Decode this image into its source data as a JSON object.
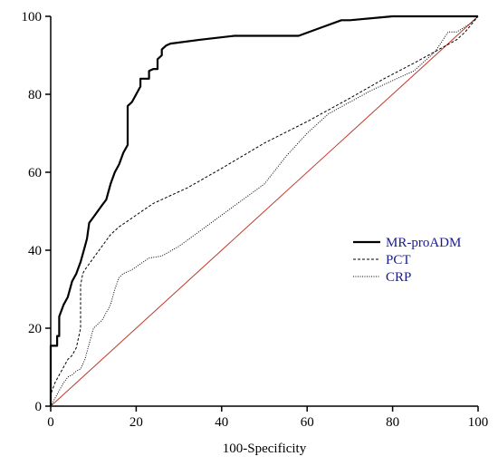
{
  "chart_data": {
    "type": "line",
    "title": "",
    "xlabel": "100-Specificity",
    "ylabel": "",
    "xlim": [
      0,
      100
    ],
    "ylim": [
      0,
      100
    ],
    "x_ticks": [
      0,
      20,
      40,
      60,
      80,
      100
    ],
    "y_ticks": [
      0,
      20,
      40,
      60,
      80,
      100
    ],
    "x_tick_labels": [
      "0",
      "20",
      "40",
      "60",
      "80",
      "100"
    ],
    "y_tick_labels": [
      "0",
      "20",
      "40",
      "60",
      "80",
      "100"
    ],
    "grid": false,
    "legend_position": "right",
    "series": [
      {
        "name": "MR-proADM",
        "color": "#000000",
        "style": "solid-thick",
        "points": [
          [
            0,
            0
          ],
          [
            0,
            15.5
          ],
          [
            1.5,
            15.5
          ],
          [
            1.5,
            18
          ],
          [
            2,
            18
          ],
          [
            2,
            23
          ],
          [
            3,
            26
          ],
          [
            4,
            28
          ],
          [
            5,
            32
          ],
          [
            6,
            34
          ],
          [
            7,
            37
          ],
          [
            8,
            41
          ],
          [
            8.5,
            43
          ],
          [
            9,
            47
          ],
          [
            10,
            48.5
          ],
          [
            11,
            50
          ],
          [
            12,
            51.5
          ],
          [
            13,
            53
          ],
          [
            14,
            57
          ],
          [
            15,
            60
          ],
          [
            16,
            62
          ],
          [
            17,
            65
          ],
          [
            18,
            67
          ],
          [
            18,
            77
          ],
          [
            19,
            78
          ],
          [
            20,
            80
          ],
          [
            21,
            82
          ],
          [
            21,
            84
          ],
          [
            23,
            84
          ],
          [
            23,
            86
          ],
          [
            24,
            86.5
          ],
          [
            25,
            86.5
          ],
          [
            25,
            89
          ],
          [
            26,
            90
          ],
          [
            26,
            91.5
          ],
          [
            27,
            92.5
          ],
          [
            28,
            93
          ],
          [
            35,
            94
          ],
          [
            43,
            95
          ],
          [
            58,
            95
          ],
          [
            63,
            97
          ],
          [
            68,
            99
          ],
          [
            70,
            99
          ],
          [
            80,
            100
          ],
          [
            100,
            100
          ]
        ]
      },
      {
        "name": "PCT",
        "color": "#000000",
        "style": "dashed",
        "points": [
          [
            0,
            0
          ],
          [
            0,
            3
          ],
          [
            1,
            6
          ],
          [
            2,
            8
          ],
          [
            3,
            10
          ],
          [
            4,
            12
          ],
          [
            5,
            13
          ],
          [
            6,
            15
          ],
          [
            7,
            20
          ],
          [
            7,
            31
          ],
          [
            7.5,
            34
          ],
          [
            8,
            35
          ],
          [
            10,
            38
          ],
          [
            12,
            41
          ],
          [
            14,
            44
          ],
          [
            16,
            46
          ],
          [
            18,
            47.5
          ],
          [
            20,
            49
          ],
          [
            22,
            50.5
          ],
          [
            24,
            52
          ],
          [
            27,
            53.5
          ],
          [
            32,
            56
          ],
          [
            40,
            61
          ],
          [
            50,
            67.5
          ],
          [
            60,
            73
          ],
          [
            70,
            79
          ],
          [
            78,
            84
          ],
          [
            85,
            88
          ],
          [
            90,
            91
          ],
          [
            95,
            94
          ],
          [
            97,
            96
          ],
          [
            100,
            100
          ]
        ]
      },
      {
        "name": "CRP",
        "color": "#000000",
        "style": "dotted",
        "points": [
          [
            0,
            0
          ],
          [
            1,
            2
          ],
          [
            2,
            4
          ],
          [
            3,
            6
          ],
          [
            4,
            7.5
          ],
          [
            5,
            8
          ],
          [
            6,
            9
          ],
          [
            7,
            9.5
          ],
          [
            8,
            12
          ],
          [
            9,
            16
          ],
          [
            10,
            20
          ],
          [
            11,
            21
          ],
          [
            12,
            22
          ],
          [
            14,
            26
          ],
          [
            15,
            30
          ],
          [
            16,
            33
          ],
          [
            17,
            34
          ],
          [
            19,
            35
          ],
          [
            21,
            36.5
          ],
          [
            23,
            38
          ],
          [
            26,
            38.5
          ],
          [
            30,
            41
          ],
          [
            35,
            45
          ],
          [
            40,
            49
          ],
          [
            45,
            53
          ],
          [
            50,
            57
          ],
          [
            55,
            64
          ],
          [
            60,
            70
          ],
          [
            65,
            75
          ],
          [
            70,
            78
          ],
          [
            75,
            81
          ],
          [
            80,
            83.5
          ],
          [
            85,
            86
          ],
          [
            90,
            91
          ],
          [
            93,
            96
          ],
          [
            95,
            96
          ],
          [
            98,
            98
          ],
          [
            100,
            100
          ]
        ]
      },
      {
        "name": "",
        "color": "#c0392b",
        "style": "reference",
        "points": [
          [
            0,
            0
          ],
          [
            100,
            100
          ]
        ]
      }
    ]
  },
  "legend": {
    "items": [
      "MR-proADM",
      "PCT",
      "CRP"
    ]
  }
}
